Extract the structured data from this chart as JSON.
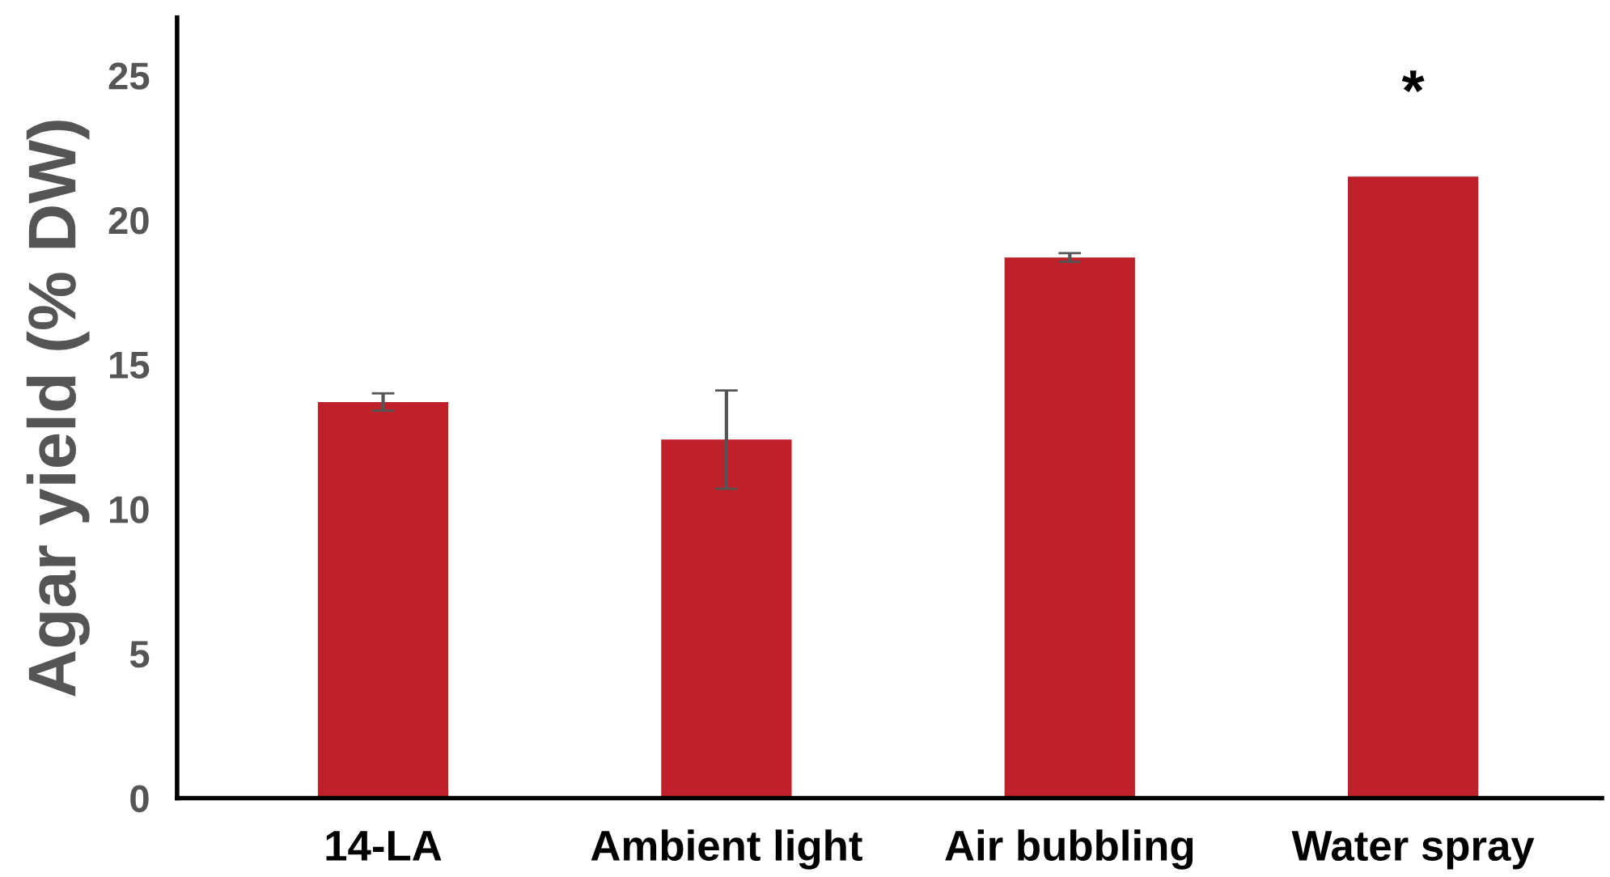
{
  "chart_data": {
    "type": "bar",
    "ylabel": "Agar yield (% DW)",
    "categories": [
      "14-LA",
      "Ambient light",
      "Air bubbling",
      "Water spray"
    ],
    "values": [
      13.7,
      12.4,
      18.7,
      21.5
    ],
    "errors": [
      0.3,
      1.7,
      0.15,
      null
    ],
    "color": "#c0202a",
    "ylim": [
      0,
      27
    ],
    "yticks": [
      0,
      5,
      10,
      15,
      20,
      25
    ],
    "grid": false,
    "annotations": [
      "*"
    ]
  }
}
